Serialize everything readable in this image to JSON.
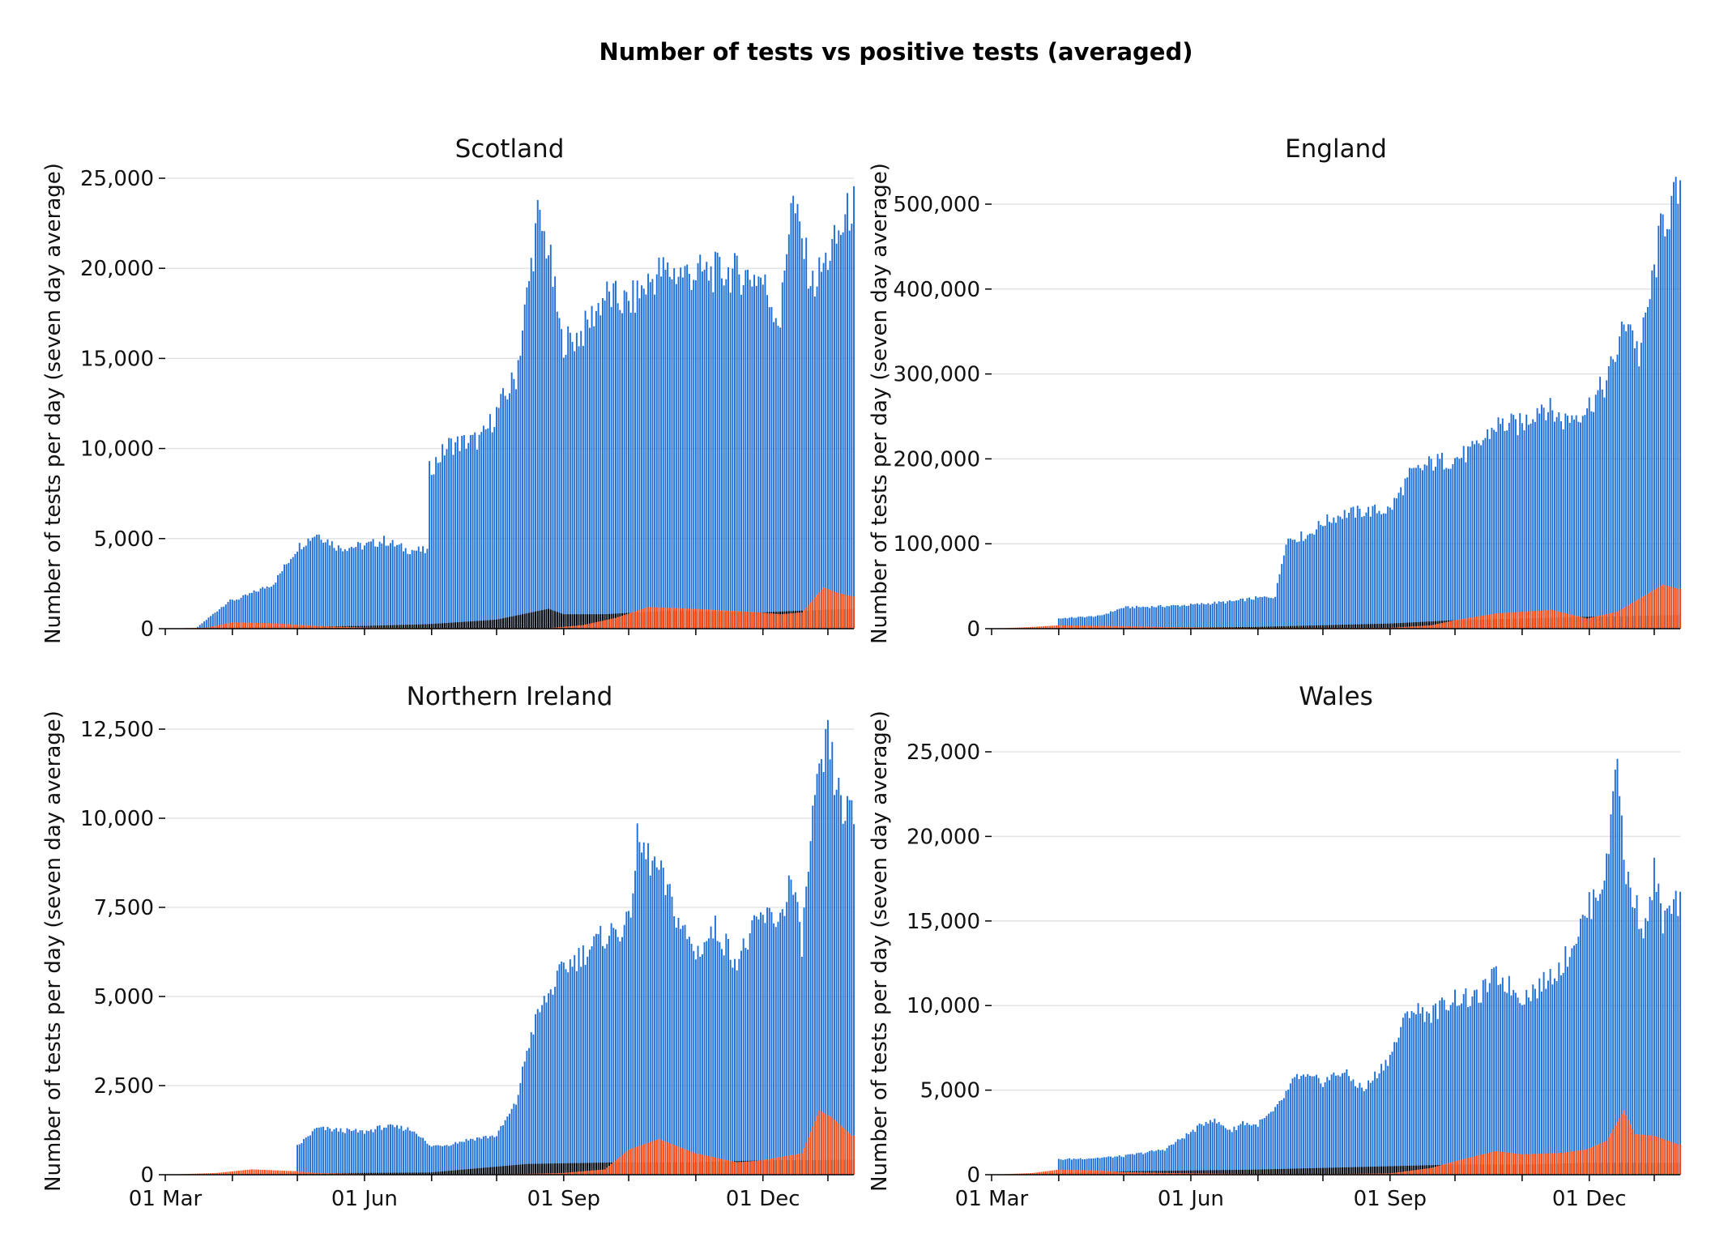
{
  "suptitle": "Number of tests vs positive tests (averaged)",
  "colors": {
    "tests": "#1f6fd6",
    "positive": "#ff4a14",
    "negative_band": "#000000",
    "grid": "#e3e3e3"
  },
  "chart_data": [
    {
      "type": "bar",
      "title": "Scotland",
      "ylabel": "Number of tests per day (seven day average)",
      "ylim": [
        0,
        25000
      ],
      "yticks": [
        0,
        5000,
        10000,
        15000,
        20000,
        25000
      ],
      "ytick_labels": [
        "0",
        "5,000",
        "10,000",
        "15,000",
        "20,000",
        "25,000"
      ],
      "xlim_days": [
        0,
        318
      ],
      "x_tick_days": [
        0,
        31,
        61,
        92,
        123,
        153,
        184,
        214,
        245,
        276,
        306
      ],
      "x_tick_labels": [
        "",
        "",
        "",
        "",
        "",
        "",
        "",
        "",
        "",
        "",
        ""
      ],
      "series": [
        {
          "name": "",
          "role": "tests",
          "x": [
            "03-01",
            "03-15",
            "03-30",
            "04-05",
            "04-20",
            "05-01",
            "05-10",
            "05-20",
            "06-01",
            "06-10",
            "06-20",
            "06-30",
            "07-01",
            "07-10",
            "07-25",
            "08-01",
            "08-10",
            "08-20",
            "08-25",
            "08-31",
            "09-05",
            "09-10",
            "09-20",
            "10-01",
            "10-15",
            "11-01",
            "11-15",
            "12-01",
            "12-10",
            "12-15",
            "12-25",
            "01-05",
            "01-12"
          ],
          "values": [
            0,
            0,
            1500,
            1700,
            2500,
            4500,
            5300,
            4500,
            4600,
            4900,
            4400,
            4300,
            8800,
            10200,
            10500,
            12000,
            14000,
            22800,
            21000,
            16000,
            16000,
            16500,
            18500,
            18000,
            19800,
            19700,
            19800,
            19500,
            17000,
            24000,
            19000,
            21500,
            23500
          ]
        },
        {
          "name": "",
          "role": "positive",
          "x": [
            "03-01",
            "03-20",
            "04-01",
            "04-20",
            "05-10",
            "06-01",
            "07-01",
            "08-01",
            "08-25",
            "09-10",
            "09-25",
            "10-10",
            "11-01",
            "12-01",
            "12-10",
            "12-20",
            "12-30",
            "01-05",
            "01-12"
          ],
          "values": [
            0,
            60,
            350,
            300,
            150,
            60,
            30,
            30,
            30,
            200,
            600,
            1200,
            1100,
            900,
            800,
            900,
            2300,
            2000,
            1800
          ]
        },
        {
          "name": "",
          "role": "negative_band",
          "x": [
            "03-01",
            "04-01",
            "06-01",
            "07-01",
            "08-01",
            "08-25",
            "09-01",
            "09-20",
            "10-20",
            "12-01",
            "12-20",
            "01-12"
          ],
          "values": [
            0,
            80,
            150,
            250,
            500,
            1100,
            800,
            800,
            1000,
            900,
            1000,
            1100
          ]
        }
      ]
    },
    {
      "type": "bar",
      "title": "England",
      "ylabel": "Number of tests per day (seven day average)",
      "ylim": [
        0,
        500000
      ],
      "yticks": [
        0,
        100000,
        200000,
        300000,
        400000,
        500000
      ],
      "ytick_labels": [
        "0",
        "100,000",
        "200,000",
        "300,000",
        "400,000",
        "500,000"
      ],
      "xlim_days": [
        0,
        318
      ],
      "x_tick_days": [
        0,
        31,
        61,
        92,
        123,
        153,
        184,
        214,
        245,
        276,
        306
      ],
      "x_tick_labels": [
        "",
        "",
        "",
        "",
        "",
        "",
        "",
        "",
        "",
        "",
        ""
      ],
      "series": [
        {
          "name": "",
          "role": "tests",
          "x": [
            "03-01",
            "03-31",
            "04-01",
            "04-20",
            "05-01",
            "05-15",
            "06-01",
            "06-20",
            "07-01",
            "07-10",
            "07-15",
            "07-25",
            "08-01",
            "08-10",
            "08-20",
            "09-01",
            "09-10",
            "09-20",
            "10-01",
            "10-10",
            "10-20",
            "11-01",
            "11-10",
            "11-20",
            "12-01",
            "12-10",
            "12-20",
            "12-25",
            "01-01",
            "01-05",
            "01-12"
          ],
          "values": [
            0,
            0,
            12000,
            15000,
            25000,
            26000,
            28000,
            32000,
            36000,
            38000,
            105000,
            110000,
            125000,
            135000,
            138000,
            140000,
            180000,
            195000,
            200000,
            210000,
            240000,
            240000,
            265000,
            245000,
            260000,
            290000,
            370000,
            320000,
            420000,
            480000,
            510000
          ]
        },
        {
          "name": "",
          "role": "positive",
          "x": [
            "03-01",
            "03-20",
            "04-01",
            "05-01",
            "06-01",
            "07-01",
            "08-01",
            "09-01",
            "09-20",
            "10-01",
            "10-20",
            "11-01",
            "11-15",
            "12-01",
            "12-15",
            "12-25",
            "01-05",
            "01-12"
          ],
          "values": [
            0,
            2000,
            4000,
            3000,
            1500,
            800,
            800,
            1000,
            4000,
            10000,
            18000,
            20000,
            22000,
            12000,
            20000,
            35000,
            52000,
            47000
          ]
        },
        {
          "name": "",
          "role": "negative_band",
          "x": [
            "03-01",
            "05-01",
            "07-01",
            "08-01",
            "09-01",
            "10-01",
            "11-01",
            "12-01",
            "01-12"
          ],
          "values": [
            0,
            1000,
            2000,
            4000,
            6000,
            10000,
            12000,
            14000,
            16000
          ]
        }
      ]
    },
    {
      "type": "bar",
      "title": "Northern Ireland",
      "ylabel": "Number of tests per day (seven day average)",
      "ylim": [
        0,
        12500
      ],
      "yticks": [
        0,
        2500,
        5000,
        7500,
        10000,
        12500
      ],
      "ytick_labels": [
        "0",
        "2,500",
        "5,000",
        "7,500",
        "10,000",
        "12,500"
      ],
      "xlim_days": [
        0,
        318
      ],
      "x_tick_days": [
        0,
        31,
        61,
        92,
        123,
        153,
        184,
        214,
        245,
        276,
        306
      ],
      "x_tick_labels": [
        "01 Mar",
        "",
        "",
        "01 Jun",
        "",
        "",
        "01 Sep",
        "",
        "",
        "01 Dec",
        ""
      ],
      "series": [
        {
          "name": "",
          "role": "tests",
          "x": [
            "03-01",
            "04-30",
            "05-01",
            "05-10",
            "05-20",
            "06-01",
            "06-10",
            "06-20",
            "06-25",
            "07-01",
            "07-10",
            "07-20",
            "08-01",
            "08-10",
            "08-15",
            "08-20",
            "09-01",
            "09-10",
            "09-20",
            "10-01",
            "10-05",
            "10-15",
            "10-25",
            "11-01",
            "11-10",
            "11-20",
            "12-01",
            "12-10",
            "12-15",
            "12-20",
            "12-25",
            "01-01",
            "01-05",
            "01-08",
            "01-12"
          ],
          "values": [
            0,
            0,
            800,
            1300,
            1250,
            1200,
            1350,
            1300,
            1200,
            800,
            850,
            1000,
            1100,
            2000,
            3500,
            4500,
            5800,
            6200,
            6700,
            7000,
            9300,
            8500,
            7000,
            6200,
            6900,
            6000,
            7200,
            7200,
            8300,
            6500,
            10000,
            12200,
            10800,
            10300,
            10000
          ]
        },
        {
          "name": "",
          "role": "positive",
          "x": [
            "03-01",
            "03-25",
            "04-10",
            "04-30",
            "05-10",
            "06-01",
            "07-01",
            "08-01",
            "08-20",
            "09-01",
            "09-20",
            "10-01",
            "10-15",
            "11-01",
            "11-20",
            "12-01",
            "12-20",
            "12-28",
            "01-03",
            "01-12"
          ],
          "values": [
            0,
            50,
            150,
            100,
            50,
            20,
            10,
            10,
            30,
            50,
            150,
            700,
            1000,
            600,
            350,
            400,
            600,
            1800,
            1600,
            1100
          ]
        },
        {
          "name": "",
          "role": "negative_band",
          "x": [
            "03-01",
            "05-01",
            "07-01",
            "08-15",
            "09-01",
            "10-01",
            "11-01",
            "12-01",
            "01-12"
          ],
          "values": [
            0,
            40,
            60,
            300,
            320,
            350,
            350,
            400,
            420
          ]
        }
      ]
    },
    {
      "type": "bar",
      "title": "Wales",
      "ylabel": "Number of tests per day (seven day average)",
      "ylim": [
        0,
        25000
      ],
      "yticks": [
        0,
        5000,
        10000,
        15000,
        20000,
        25000
      ],
      "ytick_labels": [
        "0",
        "5,000",
        "10,000",
        "15,000",
        "20,000",
        "25,000"
      ],
      "xlim_days": [
        0,
        318
      ],
      "x_tick_days": [
        0,
        31,
        61,
        92,
        123,
        153,
        184,
        214,
        245,
        276,
        306
      ],
      "x_tick_labels": [
        "01 Mar",
        "",
        "",
        "01 Jun",
        "",
        "",
        "01 Sep",
        "",
        "",
        "01 Dec",
        ""
      ],
      "series": [
        {
          "name": "",
          "role": "tests",
          "x": [
            "03-01",
            "03-31",
            "04-01",
            "04-20",
            "05-01",
            "05-20",
            "06-01",
            "06-10",
            "06-20",
            "06-25",
            "07-01",
            "07-10",
            "07-20",
            "08-01",
            "08-10",
            "08-20",
            "09-01",
            "09-10",
            "09-20",
            "10-01",
            "10-10",
            "10-20",
            "11-01",
            "11-10",
            "11-20",
            "12-01",
            "12-10",
            "12-15",
            "12-18",
            "12-20",
            "12-23",
            "12-28",
            "01-01",
            "01-05",
            "01-12"
          ],
          "values": [
            0,
            0,
            900,
            1000,
            1100,
            1500,
            2500,
            3300,
            2600,
            3100,
            2900,
            3800,
            5800,
            5500,
            6100,
            5000,
            7000,
            9800,
            9500,
            10500,
            10300,
            11800,
            10500,
            11200,
            12500,
            15500,
            18000,
            25700,
            18000,
            17500,
            16000,
            14500,
            17800,
            15000,
            16000
          ]
        },
        {
          "name": "",
          "role": "positive",
          "x": [
            "03-01",
            "03-20",
            "04-01",
            "04-20",
            "05-01",
            "06-01",
            "07-01",
            "08-01",
            "09-01",
            "09-20",
            "10-01",
            "10-20",
            "11-01",
            "11-20",
            "12-01",
            "12-10",
            "12-18",
            "12-23",
            "01-01",
            "01-12"
          ],
          "values": [
            0,
            100,
            300,
            250,
            150,
            80,
            40,
            30,
            80,
            400,
            800,
            1400,
            1200,
            1300,
            1500,
            2000,
            3800,
            2400,
            2300,
            1800
          ]
        },
        {
          "name": "",
          "role": "negative_band",
          "x": [
            "03-01",
            "05-01",
            "07-01",
            "08-01",
            "09-01",
            "10-01",
            "11-01",
            "12-01",
            "01-12"
          ],
          "values": [
            0,
            200,
            300,
            400,
            500,
            600,
            600,
            700,
            700
          ]
        }
      ]
    }
  ]
}
